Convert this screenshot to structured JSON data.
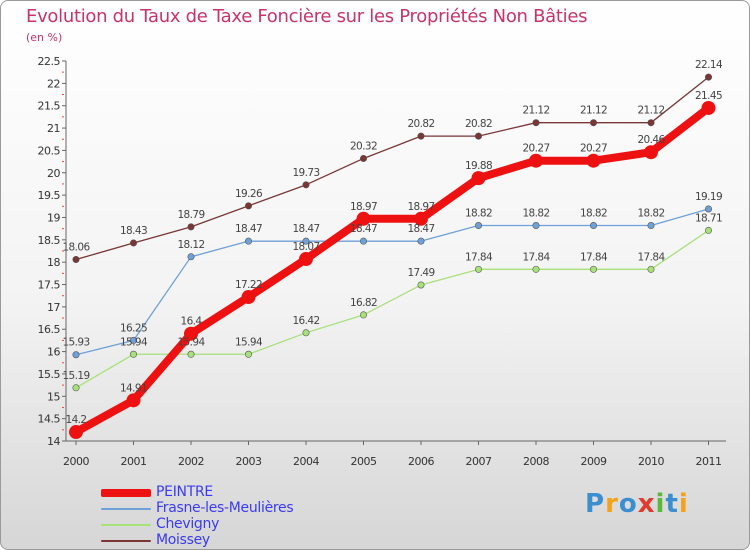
{
  "chart_data": {
    "type": "line",
    "title": "Evolution du Taux de Taxe Foncière sur les Propriétés Non Bâties",
    "unit_label": "(en %)",
    "x": [
      "2000",
      "2001",
      "2002",
      "2003",
      "2004",
      "2005",
      "2006",
      "2007",
      "2008",
      "2009",
      "2010",
      "2011"
    ],
    "ylim": [
      14,
      22.5
    ],
    "yticks": [
      "14",
      "14.5",
      "15",
      "15.5",
      "16",
      "16.5",
      "17",
      "17.5",
      "18",
      "18.5",
      "19",
      "19.5",
      "20",
      "20.5",
      "21",
      "21.5",
      "22",
      "22.5"
    ],
    "series": [
      {
        "name": "PEINTRE",
        "color": "#ee1111",
        "values": [
          14.2,
          14.91,
          16.4,
          17.22,
          18.07,
          18.97,
          18.97,
          19.88,
          20.27,
          20.27,
          20.46,
          21.45
        ],
        "labels": [
          "14.2",
          "14.91",
          "16.4",
          "17.22",
          "18.07",
          "18.97",
          "18.97",
          "19.88",
          "20.27",
          "20.27",
          "20.46",
          "21.45"
        ]
      },
      {
        "name": "Frasne-les-Meulières",
        "color": "#6fa0d8",
        "values": [
          15.93,
          16.25,
          18.12,
          18.47,
          18.47,
          18.47,
          18.47,
          18.82,
          18.82,
          18.82,
          18.82,
          19.19
        ],
        "labels": [
          "15.93",
          "16.25",
          "18.12",
          "18.47",
          "18.47",
          "18.47",
          "18.47",
          "18.82",
          "18.82",
          "18.82",
          "18.82",
          "19.19"
        ]
      },
      {
        "name": "Chevigny",
        "color": "#a8e07a",
        "values": [
          15.19,
          15.94,
          15.94,
          15.94,
          16.42,
          16.82,
          17.49,
          17.84,
          17.84,
          17.84,
          17.84,
          18.71
        ],
        "labels": [
          "15.19",
          "15.94",
          "15.94",
          "15.94",
          "16.42",
          "16.82",
          "17.49",
          "17.84",
          "17.84",
          "17.84",
          "17.84",
          "18.71"
        ]
      },
      {
        "name": "Moissey",
        "color": "#7a3535",
        "values": [
          18.06,
          18.43,
          18.79,
          19.26,
          19.73,
          20.32,
          20.82,
          20.82,
          21.12,
          21.12,
          21.12,
          22.14
        ],
        "labels": [
          "18.06",
          "18.43",
          "18.79",
          "19.26",
          "19.73",
          "20.32",
          "20.82",
          "20.82",
          "21.12",
          "21.12",
          "21.12",
          "22.14"
        ]
      }
    ],
    "grid": false,
    "legend_placement": "bottom-left"
  },
  "logo": {
    "text": "Proxiti",
    "letters": [
      "P",
      "r",
      "o",
      "x",
      "i",
      "t",
      "i"
    ],
    "colors": [
      "#3b8fd0",
      "#f2a21b",
      "#3b8fd0",
      "#e23a2e",
      "#5cb83a",
      "#3b8fd0",
      "#f2a21b"
    ]
  }
}
